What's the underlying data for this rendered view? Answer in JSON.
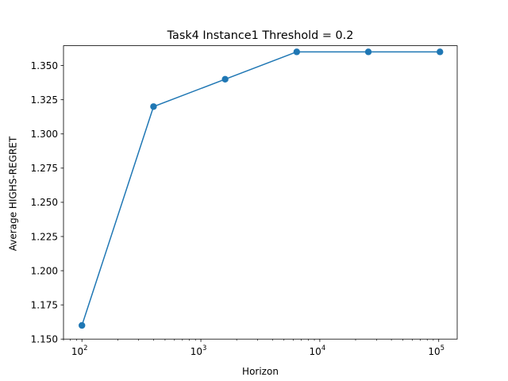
{
  "chart_data": {
    "type": "line",
    "title": "Task4 Instance1 Threshold = 0.2",
    "xlabel": "Horizon",
    "ylabel": "Average HIGHS-REGRET",
    "xscale": "log",
    "xlim": [
      70,
      143000
    ],
    "ylim": [
      1.15,
      1.3645
    ],
    "x_ticks": [
      {
        "value": 100,
        "base": "10",
        "exp": "2"
      },
      {
        "value": 1000,
        "base": "10",
        "exp": "3"
      },
      {
        "value": 10000,
        "base": "10",
        "exp": "4"
      },
      {
        "value": 100000,
        "base": "10",
        "exp": "5"
      }
    ],
    "y_ticks": [
      {
        "value": 1.15,
        "label": "1.150"
      },
      {
        "value": 1.175,
        "label": "1.175"
      },
      {
        "value": 1.2,
        "label": "1.200"
      },
      {
        "value": 1.225,
        "label": "1.225"
      },
      {
        "value": 1.25,
        "label": "1.250"
      },
      {
        "value": 1.275,
        "label": "1.275"
      },
      {
        "value": 1.3,
        "label": "1.300"
      },
      {
        "value": 1.325,
        "label": "1.325"
      },
      {
        "value": 1.35,
        "label": "1.350"
      }
    ],
    "series": [
      {
        "color": "#1f77b4",
        "marker": "circle",
        "x": [
          100,
          400,
          1600,
          6400,
          25600,
          102400
        ],
        "y": [
          1.16,
          1.32,
          1.34,
          1.36,
          1.36,
          1.36
        ]
      }
    ],
    "grid": false,
    "legend": "none"
  }
}
